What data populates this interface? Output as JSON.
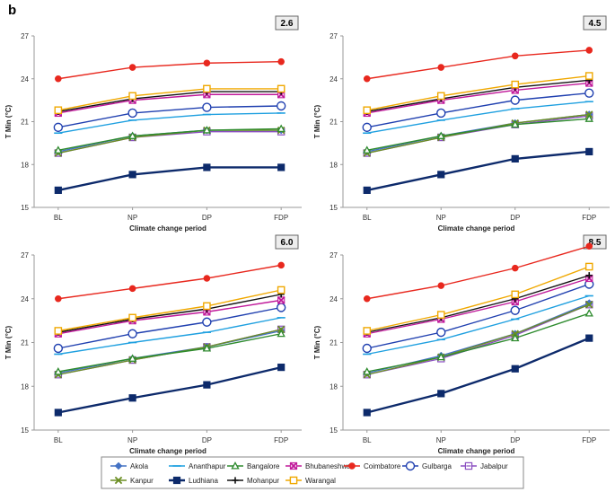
{
  "figure_label": "b",
  "legend": {
    "items": [
      {
        "name": "Akola",
        "color": "#4472c4",
        "marker": "diamond"
      },
      {
        "name": "Ananthapur",
        "color": "#1fa0e0",
        "marker": "dash"
      },
      {
        "name": "Bangalore",
        "color": "#2e8b2e",
        "marker": "triangle"
      },
      {
        "name": "Bhubaneshwar",
        "color": "#c0189a",
        "marker": "x-square"
      },
      {
        "name": "Coimbatore",
        "color": "#e8281e",
        "marker": "circle"
      },
      {
        "name": "Gulbarga",
        "color": "#2040b0",
        "marker": "open-circle"
      },
      {
        "name": "Jabalpur",
        "color": "#8a4fc0",
        "marker": "open-square-dash"
      },
      {
        "name": "Kanpur",
        "color": "#6b8e23",
        "marker": "x"
      },
      {
        "name": "Ludhiana",
        "color": "#0d2a6b",
        "marker": "square"
      },
      {
        "name": "Mohanpur",
        "color": "#111111",
        "marker": "plus"
      },
      {
        "name": "Warangal",
        "color": "#f0a800",
        "marker": "open-square"
      }
    ]
  },
  "chart_data": [
    {
      "type": "line",
      "panel_label": "2.6",
      "title": "",
      "xlabel": "Climate change period",
      "ylabel": "T Min (°C)",
      "categories": [
        "BL",
        "NP",
        "DP",
        "FDP"
      ],
      "ylim": [
        15,
        27
      ],
      "yticks": [
        15,
        18,
        21,
        24,
        27
      ],
      "series": [
        {
          "name": "Akola",
          "values": [
            18.9,
            20.0,
            20.4,
            20.4
          ]
        },
        {
          "name": "Ananthapur",
          "values": [
            20.2,
            21.1,
            21.5,
            21.6
          ]
        },
        {
          "name": "Bangalore",
          "values": [
            19.0,
            20.0,
            20.4,
            20.5
          ]
        },
        {
          "name": "Bhubaneshwar",
          "values": [
            21.6,
            22.5,
            22.9,
            22.9
          ]
        },
        {
          "name": "Coimbatore",
          "values": [
            24.0,
            24.8,
            25.1,
            25.2
          ]
        },
        {
          "name": "Gulbarga",
          "values": [
            20.6,
            21.6,
            22.0,
            22.1
          ]
        },
        {
          "name": "Jabalpur",
          "values": [
            18.8,
            19.9,
            20.3,
            20.3
          ]
        },
        {
          "name": "Kanpur",
          "values": [
            18.8,
            19.9,
            20.4,
            20.4
          ]
        },
        {
          "name": "Ludhiana",
          "values": [
            16.2,
            17.3,
            17.8,
            17.8
          ]
        },
        {
          "name": "Mohanpur",
          "values": [
            21.7,
            22.6,
            23.1,
            23.1
          ]
        },
        {
          "name": "Warangal",
          "values": [
            21.8,
            22.8,
            23.3,
            23.3
          ]
        }
      ]
    },
    {
      "type": "line",
      "panel_label": "4.5",
      "title": "",
      "xlabel": "Climate change period",
      "ylabel": "T Min (°C)",
      "categories": [
        "BL",
        "NP",
        "DP",
        "FDP"
      ],
      "ylim": [
        15,
        27
      ],
      "yticks": [
        15,
        18,
        21,
        24,
        27
      ],
      "series": [
        {
          "name": "Akola",
          "values": [
            18.9,
            20.0,
            20.9,
            21.5
          ]
        },
        {
          "name": "Ananthapur",
          "values": [
            20.2,
            21.1,
            21.9,
            22.4
          ]
        },
        {
          "name": "Bangalore",
          "values": [
            19.0,
            20.0,
            20.8,
            21.2
          ]
        },
        {
          "name": "Bhubaneshwar",
          "values": [
            21.6,
            22.5,
            23.2,
            23.7
          ]
        },
        {
          "name": "Coimbatore",
          "values": [
            24.0,
            24.8,
            25.6,
            26.0
          ]
        },
        {
          "name": "Gulbarga",
          "values": [
            20.6,
            21.6,
            22.5,
            23.0
          ]
        },
        {
          "name": "Jabalpur",
          "values": [
            18.8,
            19.9,
            20.8,
            21.4
          ]
        },
        {
          "name": "Kanpur",
          "values": [
            18.8,
            19.9,
            20.9,
            21.5
          ]
        },
        {
          "name": "Ludhiana",
          "values": [
            16.2,
            17.3,
            18.4,
            18.9
          ]
        },
        {
          "name": "Mohanpur",
          "values": [
            21.7,
            22.6,
            23.4,
            23.9
          ]
        },
        {
          "name": "Warangal",
          "values": [
            21.8,
            22.8,
            23.6,
            24.2
          ]
        }
      ]
    },
    {
      "type": "line",
      "panel_label": "6.0",
      "title": "",
      "xlabel": "Climate change period",
      "ylabel": "T Min (°C)",
      "categories": [
        "BL",
        "NP",
        "DP",
        "FDP"
      ],
      "ylim": [
        15,
        27
      ],
      "yticks": [
        15,
        18,
        21,
        24,
        27
      ],
      "series": [
        {
          "name": "Akola",
          "values": [
            18.9,
            19.9,
            20.7,
            21.8
          ]
        },
        {
          "name": "Ananthapur",
          "values": [
            20.2,
            21.0,
            21.7,
            22.7
          ]
        },
        {
          "name": "Bangalore",
          "values": [
            19.0,
            19.9,
            20.6,
            21.6
          ]
        },
        {
          "name": "Bhubaneshwar",
          "values": [
            21.6,
            22.5,
            23.1,
            23.9
          ]
        },
        {
          "name": "Coimbatore",
          "values": [
            24.0,
            24.7,
            25.4,
            26.3
          ]
        },
        {
          "name": "Gulbarga",
          "values": [
            20.6,
            21.6,
            22.4,
            23.4
          ]
        },
        {
          "name": "Jabalpur",
          "values": [
            18.8,
            19.8,
            20.7,
            21.9
          ]
        },
        {
          "name": "Kanpur",
          "values": [
            18.8,
            19.8,
            20.7,
            21.9
          ]
        },
        {
          "name": "Ludhiana",
          "values": [
            16.2,
            17.2,
            18.1,
            19.3
          ]
        },
        {
          "name": "Mohanpur",
          "values": [
            21.7,
            22.6,
            23.3,
            24.3
          ]
        },
        {
          "name": "Warangal",
          "values": [
            21.8,
            22.7,
            23.5,
            24.6
          ]
        }
      ]
    },
    {
      "type": "line",
      "panel_label": "8.5",
      "title": "",
      "xlabel": "Climate change period",
      "ylabel": "T Min (°C)",
      "categories": [
        "BL",
        "NP",
        "DP",
        "FDP"
      ],
      "ylim": [
        15,
        27
      ],
      "yticks": [
        15,
        18,
        21,
        24,
        27
      ],
      "series": [
        {
          "name": "Akola",
          "values": [
            18.9,
            20.1,
            21.6,
            23.7
          ]
        },
        {
          "name": "Ananthapur",
          "values": [
            20.2,
            21.2,
            22.6,
            24.2
          ]
        },
        {
          "name": "Bangalore",
          "values": [
            19.0,
            20.0,
            21.3,
            23.0
          ]
        },
        {
          "name": "Bhubaneshwar",
          "values": [
            21.6,
            22.6,
            23.8,
            25.4
          ]
        },
        {
          "name": "Coimbatore",
          "values": [
            24.0,
            24.9,
            26.1,
            27.6
          ]
        },
        {
          "name": "Gulbarga",
          "values": [
            20.6,
            21.7,
            23.2,
            25.0
          ]
        },
        {
          "name": "Jabalpur",
          "values": [
            18.8,
            19.9,
            21.5,
            23.6
          ]
        },
        {
          "name": "Kanpur",
          "values": [
            18.8,
            20.0,
            21.6,
            23.6
          ]
        },
        {
          "name": "Ludhiana",
          "values": [
            16.2,
            17.5,
            19.2,
            21.3
          ]
        },
        {
          "name": "Mohanpur",
          "values": [
            21.7,
            22.7,
            24.0,
            25.6
          ]
        },
        {
          "name": "Warangal",
          "values": [
            21.8,
            22.9,
            24.3,
            26.2
          ]
        }
      ]
    }
  ]
}
